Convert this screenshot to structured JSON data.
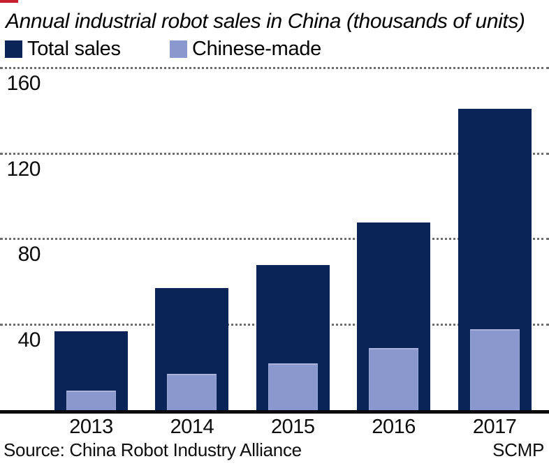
{
  "title": "Annual industrial robot sales in China  (thousands of units)",
  "accent_color": "#c8202e",
  "legend": [
    {
      "label": "Total sales",
      "color": "#0a2458"
    },
    {
      "label": "Chinese-made",
      "color": "#8b98ce"
    }
  ],
  "chart_data": {
    "type": "bar",
    "title": "Annual industrial robot sales in China (thousands of units)",
    "categories": [
      "2013",
      "2014",
      "2015",
      "2016",
      "2017"
    ],
    "series": [
      {
        "name": "Total sales",
        "color": "#0a2458",
        "values": [
          37,
          57,
          68,
          88,
          141
        ]
      },
      {
        "name": "Chinese-made",
        "color": "#8b98ce",
        "values": [
          9,
          17,
          22,
          29,
          38
        ]
      }
    ],
    "ylabel": "thousands of units",
    "ylim": [
      0,
      160
    ],
    "yticks": [
      40,
      80,
      120,
      160
    ],
    "grid": "horizontal-dotted",
    "legend_position": "top-left"
  },
  "footer": {
    "source": "Source: China Robot Industry Alliance",
    "credit": "SCMP"
  }
}
